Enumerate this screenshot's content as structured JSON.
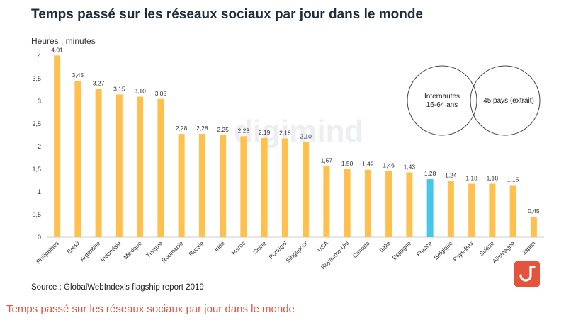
{
  "chart_data": {
    "type": "bar",
    "title": "Temps passé sur les réseaux sociaux par jour dans le monde",
    "ylabel": "Heures , minutes",
    "ylim": [
      0,
      4
    ],
    "yticks": [
      "0",
      "0,5",
      "1",
      "1,5",
      "2",
      "2,5",
      "3",
      "3,5",
      "4"
    ],
    "ytick_values": [
      0,
      0.5,
      1,
      1.5,
      2,
      2.5,
      3,
      3.5,
      4
    ],
    "categories": [
      "Philippines",
      "Brésil",
      "Argentine",
      "Indonésie",
      "Mexique",
      "Turquie",
      "Roumanie",
      "Russie",
      "Inde",
      "Maroc",
      "Chine",
      "Portugal",
      "Singapour",
      "USA",
      "Royaume-Uni",
      "Canada",
      "Italie",
      "Espagne",
      "France",
      "Belgique",
      "Pays-Bas",
      "Suisse",
      "Allemagne",
      "Japon"
    ],
    "values": [
      4.01,
      3.45,
      3.27,
      3.15,
      3.1,
      3.05,
      2.28,
      2.28,
      2.25,
      2.23,
      2.19,
      2.18,
      2.1,
      1.57,
      1.5,
      1.49,
      1.46,
      1.43,
      1.28,
      1.24,
      1.18,
      1.18,
      1.15,
      0.45
    ],
    "value_labels": [
      "4.01",
      "3,45",
      "3,27",
      "3,15",
      "3,10",
      "3,05",
      "2,28",
      "2,28",
      "2,25",
      "2,23",
      "2,19",
      "2,18",
      "2,10",
      "1,57",
      "1,50",
      "1,49",
      "1,46",
      "1,43",
      "1,28",
      "1,24",
      "1,18",
      "1,18",
      "1,15",
      "0,45"
    ],
    "highlight": "France",
    "colors": {
      "bar": "#ffc04d",
      "highlight": "#45c6ea",
      "axis": "#cccccc"
    },
    "source": "Source : GlobalWebIndex’s flagship report 2019"
  },
  "venn": {
    "left_line1": "Internautes",
    "left_line2": "16-64 ans",
    "right": "45 pays (extrait)"
  },
  "caption": "Temps passé sur les réseaux sociaux par jour dans le monde",
  "watermark": "digimind",
  "logo": {
    "color": "#e5533d"
  }
}
